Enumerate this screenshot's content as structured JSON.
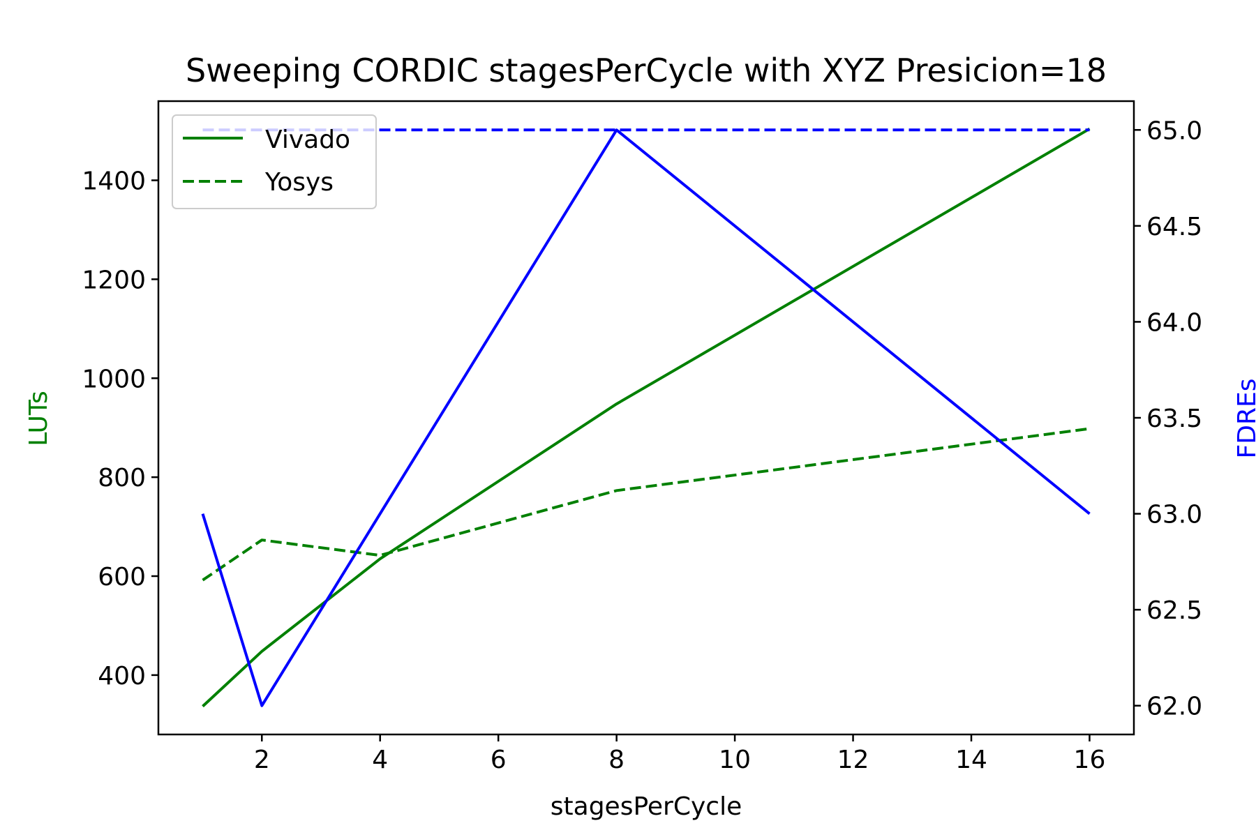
{
  "chart_data": {
    "type": "line",
    "title": "Sweeping CORDIC stagesPerCycle with XYZ Presicion=18",
    "xlabel": "stagesPerCycle",
    "ylabel_left": "LUTs",
    "ylabel_right": "FDREs",
    "x": [
      1,
      2,
      4,
      8,
      16
    ],
    "xlim": [
      0.25,
      16.75
    ],
    "xticks": [
      2,
      4,
      6,
      8,
      10,
      12,
      14,
      16
    ],
    "ylim_left": [
      280,
      1560
    ],
    "yticks_left": [
      400,
      600,
      800,
      1000,
      1200,
      1400
    ],
    "ylim_right": [
      61.85,
      65.15
    ],
    "yticks_right": [
      "62.0",
      "62.5",
      "63.0",
      "63.5",
      "64.0",
      "64.5",
      "65.0"
    ],
    "grid": false,
    "legend_position": "upper-left",
    "colors": {
      "luts": "#008000",
      "fdres": "#0000ff",
      "axis": "#000000"
    },
    "series": [
      {
        "name": "Vivado",
        "axis": "left",
        "color": "#008000",
        "style": "solid",
        "values": [
          337,
          448,
          635,
          948,
          1504
        ]
      },
      {
        "name": "Yosys",
        "axis": "left",
        "color": "#008000",
        "style": "dashed",
        "values": [
          592,
          673,
          642,
          773,
          898
        ]
      },
      {
        "name": "",
        "axis": "right",
        "color": "#0000ff",
        "style": "solid",
        "values": [
          63.0,
          62.0,
          63.0,
          65.0,
          63.0
        ]
      },
      {
        "name": "",
        "axis": "right",
        "color": "#0000ff",
        "style": "dashed",
        "values": [
          65.0,
          65.0,
          65.0,
          65.0,
          65.0
        ]
      }
    ]
  }
}
